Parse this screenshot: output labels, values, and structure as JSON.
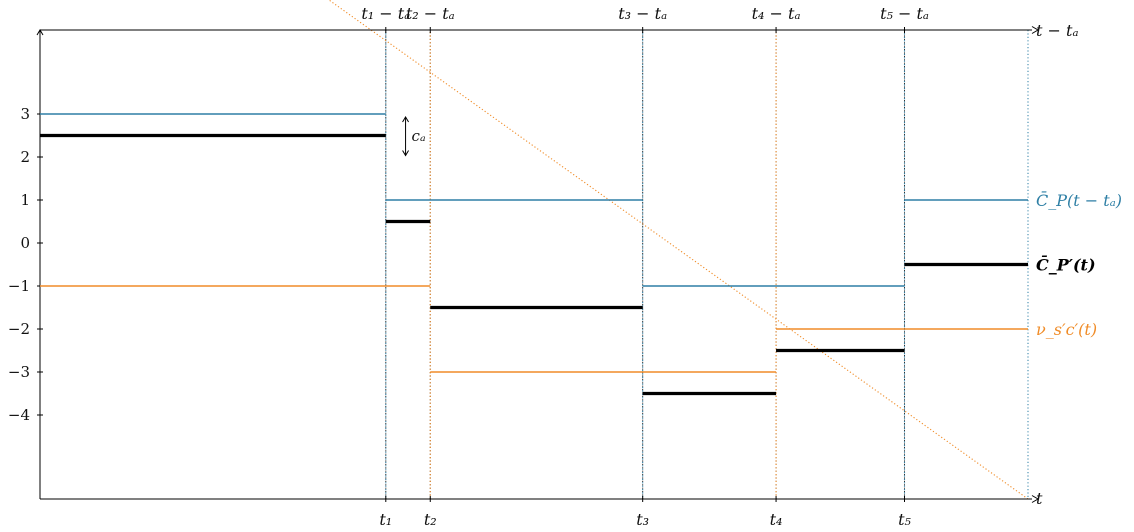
{
  "chart_data": {
    "type": "line",
    "step": true,
    "y_ticks": [
      "3",
      "2",
      "1",
      "0",
      "−1",
      "−2",
      "−3",
      "−4"
    ],
    "y_tick_values": [
      3,
      2,
      1,
      0,
      -1,
      -2,
      -3,
      -4
    ],
    "ylim": [
      -6,
      5
    ],
    "xlim": [
      0,
      100
    ],
    "bottom_axis": {
      "label": "t",
      "ticks": [
        {
          "value": 35,
          "label": "t₁"
        },
        {
          "value": 39.5,
          "label": "t₂"
        },
        {
          "value": 61,
          "label": "t₃"
        },
        {
          "value": 74.5,
          "label": "t₄"
        },
        {
          "value": 87.5,
          "label": "t₅"
        }
      ]
    },
    "top_axis": {
      "label": "t − tₐ",
      "ticks": [
        {
          "value": 35,
          "label": "t₁ − tₐ"
        },
        {
          "value": 39.5,
          "label": "t₂ − tₐ"
        },
        {
          "value": 61,
          "label": "t₃ − tₐ"
        },
        {
          "value": 74.5,
          "label": "t₄ − tₐ"
        },
        {
          "value": 87.5,
          "label": "t₅ − tₐ"
        }
      ]
    },
    "series": [
      {
        "name": "C̄_P(t − tₐ)",
        "color": "#2e7fa5",
        "axis": "top",
        "breakpoints": [
          35,
          61,
          87.5
        ],
        "segments": [
          {
            "x0": 0,
            "x1": 35,
            "y": 3
          },
          {
            "x0": 35,
            "x1": 61,
            "y": 1
          },
          {
            "x0": 61,
            "x1": 87.5,
            "y": -1
          },
          {
            "x0": 87.5,
            "x1": 100,
            "y": 1
          }
        ]
      },
      {
        "name": "C̄_P′(t)",
        "color": "#000000",
        "bold": true,
        "axis": "bottom",
        "segments": [
          {
            "x0": 0,
            "x1": 35,
            "y": 2.5
          },
          {
            "x0": 35,
            "x1": 39.5,
            "y": 0.5
          },
          {
            "x0": 39.5,
            "x1": 61,
            "y": -1.5
          },
          {
            "x0": 61,
            "x1": 74.5,
            "y": -3.5
          },
          {
            "x0": 74.5,
            "x1": 87.5,
            "y": -2.5
          },
          {
            "x0": 87.5,
            "x1": 100,
            "y": -0.5
          }
        ]
      },
      {
        "name": "ν_s′c′(t)",
        "color": "#f08c28",
        "axis": "bottom",
        "breakpoints": [
          39.5,
          74.5
        ],
        "segments": [
          {
            "x0": 0,
            "x1": 39.5,
            "y": -1
          },
          {
            "x0": 39.5,
            "x1": 74.5,
            "y": -3
          },
          {
            "x0": 74.5,
            "x1": 100,
            "y": -2
          }
        ]
      }
    ],
    "annotations": [
      {
        "text": "cₐ",
        "kind": "double-arrow",
        "x": 37,
        "y_from": 2.5,
        "y_to": 3
      }
    ]
  }
}
